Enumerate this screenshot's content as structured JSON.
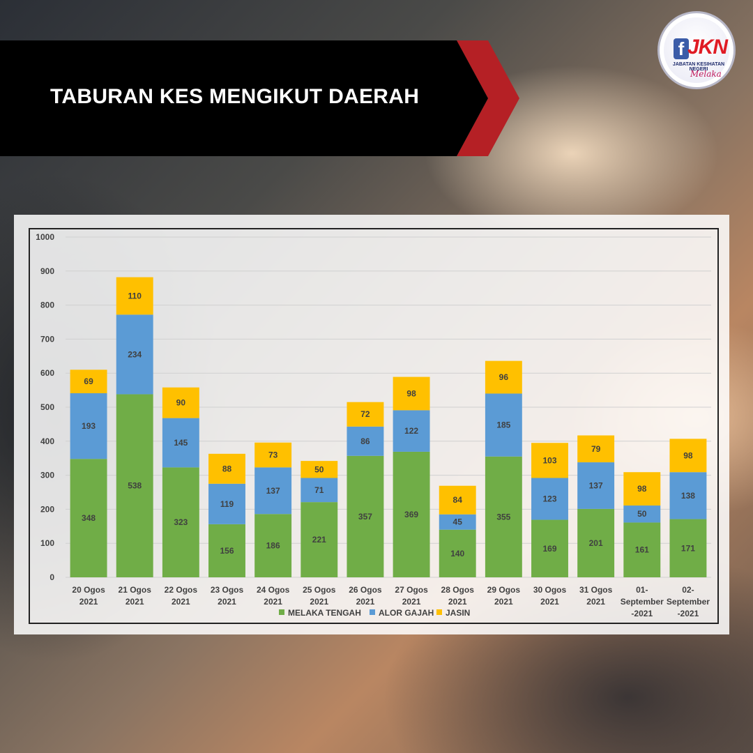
{
  "header": {
    "title": "TABURAN KES MENGIKUT DAERAH"
  },
  "logo": {
    "f_letter": "f",
    "brand": "JKN",
    "subtitle": "JABATAN KESIHATAN NEGERI",
    "script": "Melaka"
  },
  "colors": {
    "banner_black": "#000000",
    "banner_red": "#b52025",
    "melaka_tengah": "#70ad47",
    "alor_gajah": "#5b9bd5",
    "jasin": "#ffc000"
  },
  "chart_data": {
    "type": "bar",
    "stacked": true,
    "categories": [
      [
        "20 Ogos",
        "2021"
      ],
      [
        "21 Ogos",
        "2021"
      ],
      [
        "22 Ogos",
        "2021"
      ],
      [
        "23 Ogos",
        "2021"
      ],
      [
        "24 Ogos",
        "2021"
      ],
      [
        "25 Ogos",
        "2021"
      ],
      [
        "26 Ogos",
        "2021"
      ],
      [
        "27 Ogos",
        "2021"
      ],
      [
        "28 Ogos",
        "2021"
      ],
      [
        "29 Ogos",
        "2021"
      ],
      [
        "30 Ogos",
        "2021"
      ],
      [
        "31 Ogos",
        "2021"
      ],
      [
        "01-",
        "September",
        "-2021"
      ],
      [
        "02-",
        "September",
        "-2021"
      ]
    ],
    "series": [
      {
        "name": "MELAKA TENGAH",
        "color": "#70ad47",
        "values": [
          348,
          538,
          323,
          156,
          186,
          221,
          357,
          369,
          140,
          355,
          169,
          201,
          161,
          171
        ]
      },
      {
        "name": "ALOR GAJAH",
        "color": "#5b9bd5",
        "values": [
          193,
          234,
          145,
          119,
          137,
          71,
          86,
          122,
          45,
          185,
          123,
          137,
          50,
          138
        ]
      },
      {
        "name": "JASIN",
        "color": "#ffc000",
        "values": [
          69,
          110,
          90,
          88,
          73,
          50,
          72,
          98,
          84,
          96,
          103,
          79,
          98,
          98
        ]
      }
    ],
    "ylim": [
      0,
      1000
    ],
    "yticks": [
      "0",
      "100",
      "200",
      "300",
      "400",
      "500",
      "600",
      "700",
      "800",
      "900",
      "1000"
    ],
    "grid": true,
    "legend": "bottom"
  }
}
